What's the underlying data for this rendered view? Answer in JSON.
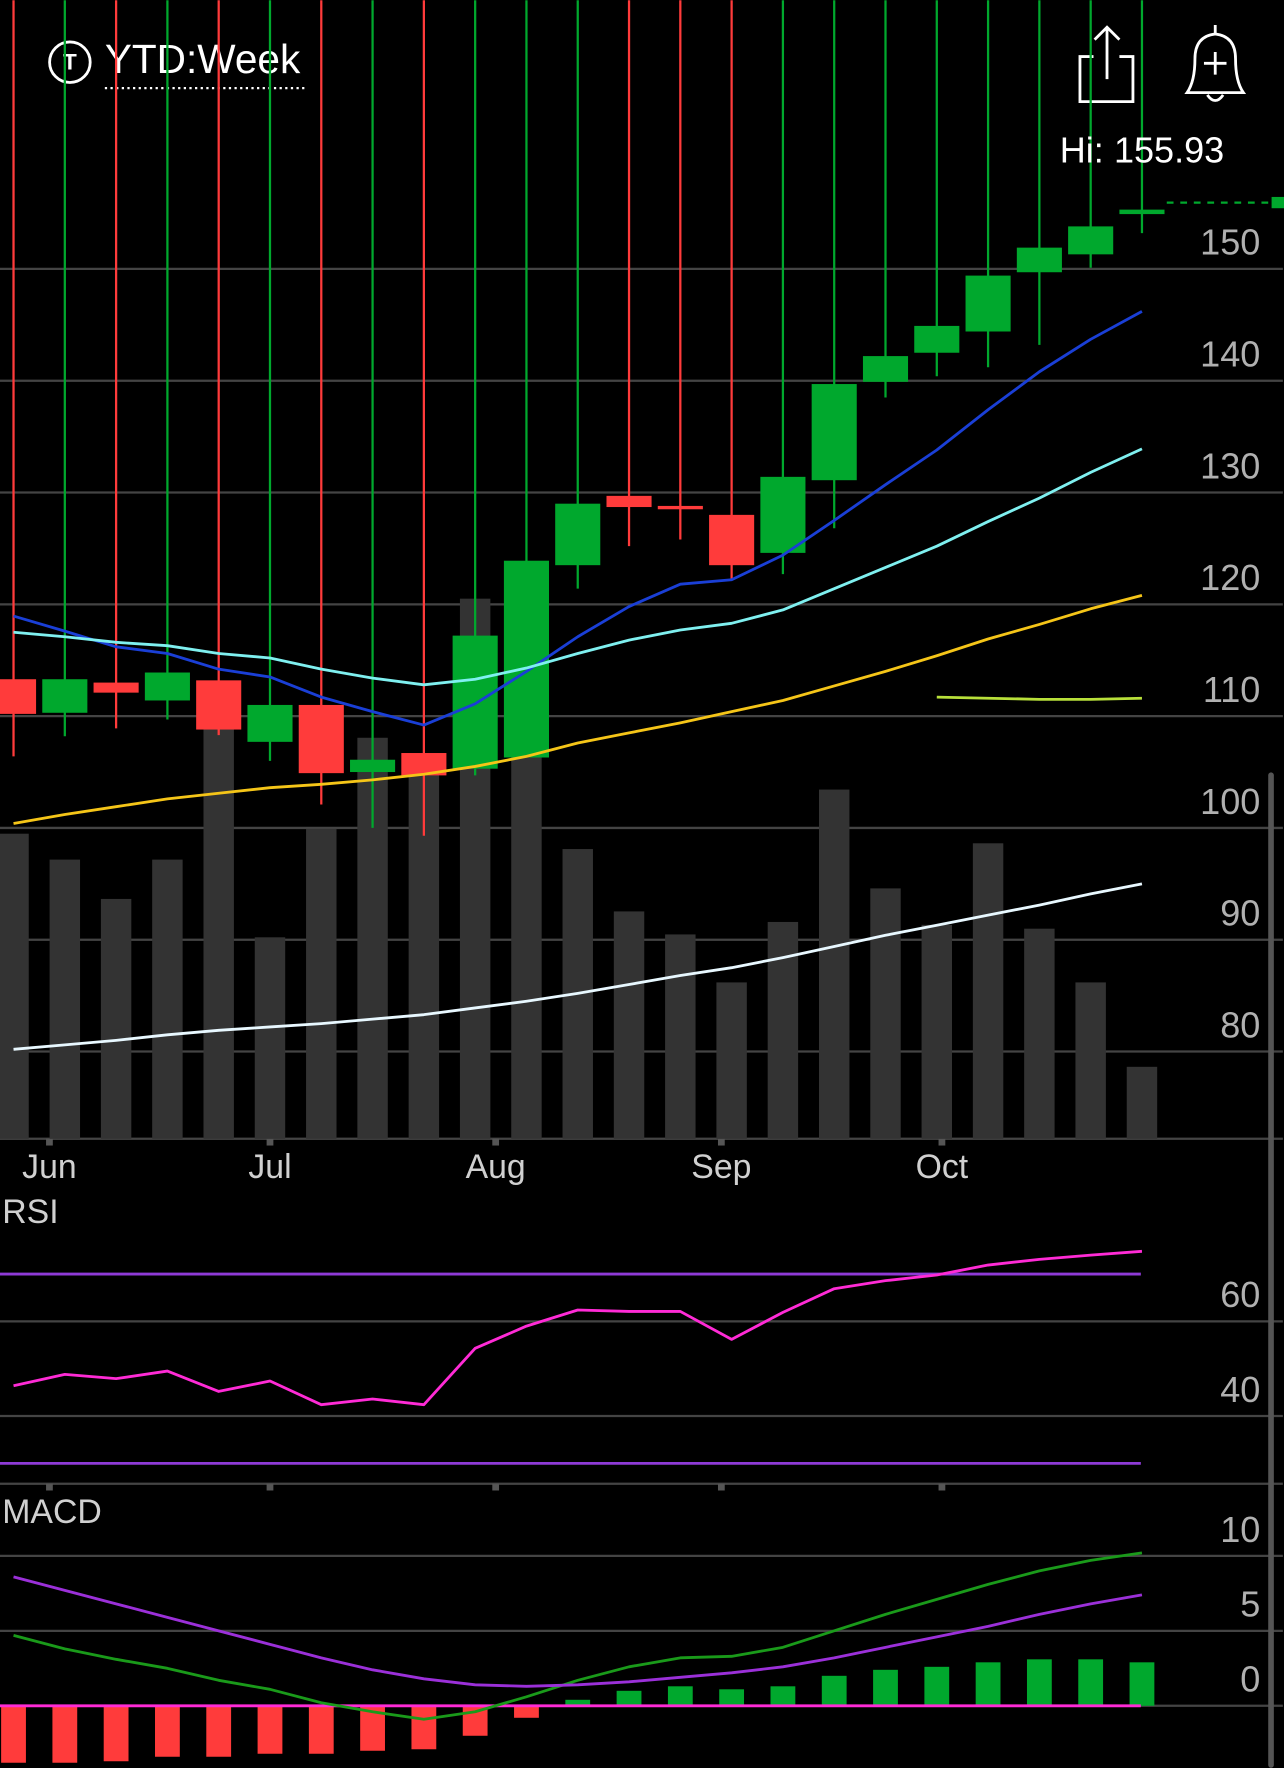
{
  "header": {
    "title": "YTD:Week"
  },
  "chart_data": [
    {
      "type": "candlestick",
      "categories": [
        null,
        null,
        null,
        null,
        null,
        null,
        null,
        null,
        null,
        null,
        null,
        null,
        null,
        null,
        null,
        null,
        null,
        null,
        null,
        null,
        null,
        null,
        null
      ],
      "open": [
        113.3,
        110.3,
        113.0,
        111.4,
        113.2,
        107.7,
        111.0,
        105.0,
        106.7,
        105.3,
        106.3,
        123.5,
        129.7,
        128.8,
        128.0,
        124.6,
        131.1,
        139.9,
        142.5,
        144.4,
        149.7,
        151.3,
        154.9
      ],
      "high": 155.93,
      "low": [
        106.4,
        108.2,
        108.9,
        109.7,
        108.3,
        106.0,
        102.1,
        100.0,
        99.3,
        104.7,
        106.3,
        121.4,
        125.2,
        125.8,
        122.3,
        122.7,
        126.8,
        138.5,
        140.4,
        141.2,
        143.2,
        150.1,
        153.2
      ],
      "close": [
        110.2,
        113.3,
        112.1,
        113.9,
        108.8,
        111.0,
        104.9,
        106.1,
        104.7,
        117.2,
        123.9,
        129.0,
        128.7,
        128.5,
        123.5,
        131.4,
        139.7,
        142.2,
        144.9,
        149.4,
        151.9,
        153.8,
        155.3
      ],
      "up_color": "#00a82d",
      "down_color": "#ff3b3b",
      "series": [
        {
          "kind": "bar",
          "axis": "y2",
          "color": "#333333",
          "values": [
            31.8,
            29.1,
            25.0,
            29.1,
            42.9,
            21.0,
            32.3,
            41.8,
            38.8,
            56.3,
            40.0,
            30.2,
            23.7,
            21.3,
            16.3,
            22.6,
            36.4,
            26.1,
            22.3,
            30.8,
            21.9,
            16.3,
            7.5
          ]
        },
        {
          "kind": "line",
          "color": "#1a3fd6",
          "values": [
            118.95,
            117.6,
            116.2,
            115.6,
            114.2,
            113.5,
            111.7,
            110.4,
            109.2,
            111.1,
            114.0,
            117.1,
            119.8,
            121.8,
            122.2,
            124.4,
            127.5,
            130.7,
            133.8,
            137.4,
            140.8,
            143.7,
            146.2
          ]
        },
        {
          "kind": "line",
          "color": "#7ff0f0",
          "values": [
            117.5,
            117.1,
            116.6,
            116.3,
            115.6,
            115.2,
            114.2,
            113.4,
            112.8,
            113.3,
            114.3,
            115.6,
            116.8,
            117.7,
            118.3,
            119.5,
            121.4,
            123.3,
            125.2,
            127.4,
            129.5,
            131.8,
            133.9
          ]
        },
        {
          "kind": "line",
          "color": "#f5c518",
          "values": [
            100.4,
            101.2,
            101.9,
            102.6,
            103.1,
            103.6,
            103.9,
            104.3,
            104.8,
            105.5,
            106.4,
            107.6,
            108.5,
            109.4,
            110.4,
            111.4,
            112.7,
            114.0,
            115.4,
            116.9,
            118.2,
            119.6,
            120.8
          ]
        },
        {
          "kind": "line",
          "color": "#e8f8ff",
          "values": [
            80.2,
            80.6,
            81.0,
            81.5,
            81.9,
            82.2,
            82.5,
            82.9,
            83.3,
            83.9,
            84.5,
            85.2,
            86.0,
            86.8,
            87.5,
            88.4,
            89.4,
            90.4,
            91.3,
            92.2,
            93.1,
            94.1,
            95.0
          ]
        },
        {
          "kind": "line",
          "color": "#b8e03a",
          "values": [
            null,
            null,
            null,
            null,
            null,
            null,
            null,
            null,
            null,
            null,
            null,
            null,
            null,
            null,
            null,
            null,
            null,
            null,
            111.7,
            111.6,
            111.5,
            111.5,
            111.6
          ]
        }
      ],
      "high_label": "Hi:",
      "ylim": [
        72.2,
        158
      ],
      "yticks": [
        80,
        90,
        100,
        110,
        120,
        130,
        140,
        150
      ],
      "y2lim": [
        0,
        100
      ],
      "xticks": [
        {
          "value": 0.7,
          "label": "Jun"
        },
        {
          "value": 5.0,
          "label": "Jul"
        },
        {
          "value": 9.4,
          "label": "Aug"
        },
        {
          "value": 13.8,
          "label": "Sep"
        },
        {
          "value": 18.1,
          "label": "Oct"
        }
      ],
      "grid": true
    },
    {
      "type": "line",
      "title": "RSI",
      "series": [
        {
          "color": "#ff2bd6",
          "values": [
            46.4,
            48.8,
            47.9,
            49.5,
            45.2,
            47.4,
            42.4,
            43.6,
            42.4,
            54.3,
            59.0,
            62.4,
            62.1,
            62.1,
            56.2,
            61.9,
            66.9,
            68.6,
            69.8,
            71.9,
            73.1,
            74.0,
            74.8
          ]
        }
      ],
      "levels": [
        70,
        30
      ],
      "level_color": "#8e3ad6",
      "ylim": [
        25.7,
        80
      ],
      "yticks": [
        40,
        60
      ],
      "grid": true
    },
    {
      "type": "combo",
      "title": "MACD",
      "series": [
        {
          "kind": "bar",
          "up_color": "#00a82d",
          "down_color": "#ff3b3b",
          "values": [
            -3.8,
            -3.8,
            -3.7,
            -3.4,
            -3.4,
            -3.2,
            -3.2,
            -3.0,
            -2.9,
            -2.0,
            -0.8,
            0.4,
            1.0,
            1.3,
            1.1,
            1.3,
            2.0,
            2.4,
            2.6,
            2.9,
            3.1,
            3.1,
            2.9
          ]
        },
        {
          "kind": "line",
          "color": "#1a9a1a",
          "values": [
            4.7,
            3.8,
            3.1,
            2.5,
            1.7,
            1.1,
            0.2,
            -0.4,
            -0.9,
            -0.4,
            0.6,
            1.7,
            2.6,
            3.2,
            3.3,
            3.9,
            5.0,
            6.1,
            7.1,
            8.1,
            9.0,
            9.7,
            10.2
          ]
        },
        {
          "kind": "line",
          "color": "#9b30d9",
          "values": [
            8.6,
            7.7,
            6.8,
            5.9,
            5.0,
            4.1,
            3.2,
            2.4,
            1.8,
            1.4,
            1.3,
            1.4,
            1.6,
            1.9,
            2.2,
            2.6,
            3.2,
            3.9,
            4.6,
            5.3,
            6.1,
            6.8,
            7.4
          ]
        }
      ],
      "zero_line_color": "#ff2bd6",
      "ylim": [
        -4.1,
        13.8
      ],
      "yticks": [
        0,
        5,
        10
      ],
      "grid": true
    }
  ]
}
